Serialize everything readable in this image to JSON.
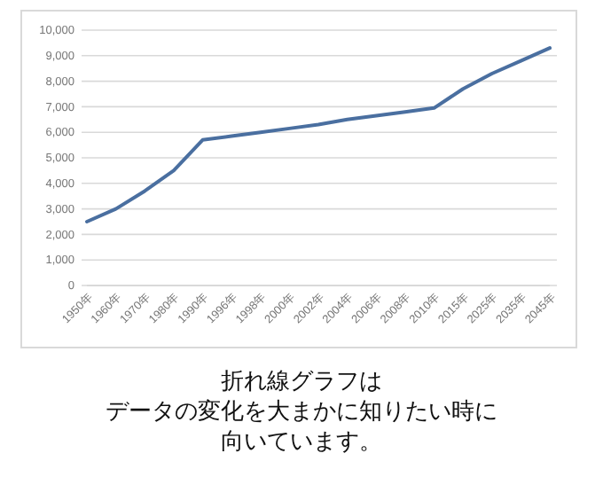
{
  "chart_data": {
    "type": "line",
    "categories": [
      "1950年",
      "1960年",
      "1970年",
      "1980年",
      "1990年",
      "1996年",
      "1998年",
      "2000年",
      "2002年",
      "2004年",
      "2006年",
      "2008年",
      "2010年",
      "2015年",
      "2025年",
      "2035年",
      "2045年"
    ],
    "values": [
      2500,
      3000,
      3700,
      4500,
      5700,
      5850,
      6000,
      6150,
      6300,
      6500,
      6650,
      6800,
      6950,
      7700,
      8300,
      8800,
      9300
    ],
    "color": "#4a6fa0",
    "ylim": [
      0,
      10000
    ],
    "yticks": [
      {
        "value": 0,
        "label": "0"
      },
      {
        "value": 1000,
        "label": "1,000"
      },
      {
        "value": 2000,
        "label": "2,000"
      },
      {
        "value": 3000,
        "label": "3,000"
      },
      {
        "value": 4000,
        "label": "4,000"
      },
      {
        "value": 5000,
        "label": "5,000"
      },
      {
        "value": 6000,
        "label": "6,000"
      },
      {
        "value": 7000,
        "label": "7,000"
      },
      {
        "value": 8000,
        "label": "8,000"
      },
      {
        "value": 9000,
        "label": "9,000"
      },
      {
        "value": 10000,
        "label": "10,000"
      }
    ],
    "grid": "y",
    "annotations": [
      "折れ線グラフは",
      "データの変化を大まかに知りたい時に",
      "向いています。"
    ]
  }
}
